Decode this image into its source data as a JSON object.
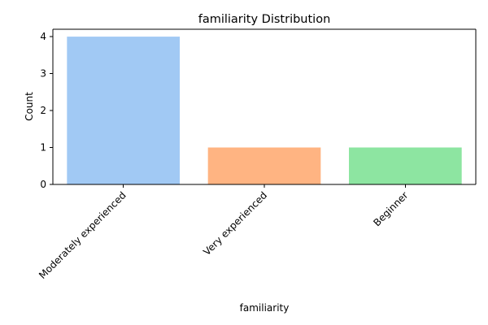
{
  "chart_data": {
    "type": "bar",
    "title": "familiarity Distribution",
    "xlabel": "familiarity",
    "ylabel": "Count",
    "categories": [
      "Moderately experienced",
      "Very experienced",
      "Beginner"
    ],
    "values": [
      4,
      1,
      1
    ],
    "colors": [
      "#a1c9f4",
      "#ffb482",
      "#8de5a1"
    ],
    "ylim": [
      0,
      4.2
    ],
    "yticks": [
      0,
      1,
      2,
      3,
      4
    ],
    "grid": false,
    "legend": "none"
  }
}
